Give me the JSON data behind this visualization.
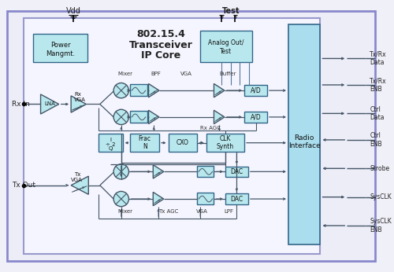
{
  "bg_color": "#f0f0f8",
  "outer_border_fc": "#e8e8f8",
  "outer_border_ec": "#7777bb",
  "inner_border_ec": "#8888cc",
  "block_fc": "#b8e8ee",
  "block_ec": "#336688",
  "radio_fc": "#aaddee",
  "line_color": "#445566",
  "title1": "802.15.4",
  "title2": "Transceiver",
  "title3": "IP Core",
  "vdd": "Vdd",
  "test": "Test",
  "rx_in": "Rx In",
  "tx_out": "Tx Out",
  "radio1": "Radio",
  "radio2": "Interface",
  "power1": "Power",
  "power2": "Mangmt.",
  "analog1": "Analog Out/",
  "analog2": "Test",
  "ports": [
    {
      "label": "Tx/Rx\nData",
      "dir": "out",
      "yf": 0.88
    },
    {
      "label": "Tx/Rx\nENB",
      "dir": "out",
      "yf": 0.76
    },
    {
      "label": "Ctrl\nData",
      "dir": "out",
      "yf": 0.63
    },
    {
      "label": "Ctrl\nENB",
      "dir": "in",
      "yf": 0.51
    },
    {
      "label": "Strobe",
      "dir": "in",
      "yf": 0.38
    },
    {
      "label": "SysCLK",
      "dir": "out",
      "yf": 0.25
    },
    {
      "label": "SysCLK\nENB",
      "dir": "in",
      "yf": 0.12
    }
  ]
}
